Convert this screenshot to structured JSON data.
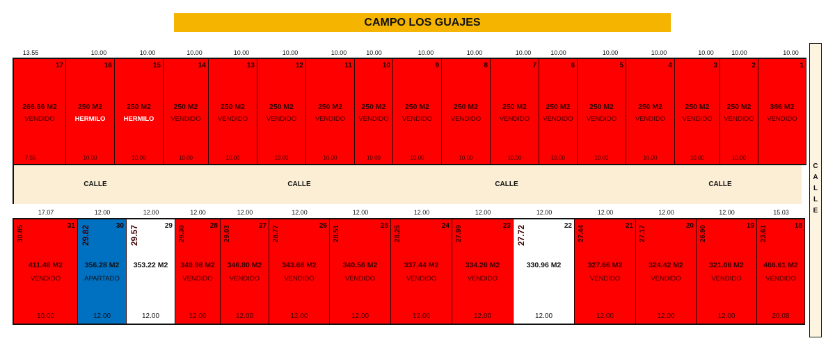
{
  "title": "CAMPO LOS GUAJES",
  "colors": {
    "sold": "#ff0000",
    "reserved": "#0070c0",
    "available": "#ffffff",
    "street": "#fbeed4",
    "title_bar": "#f5b400"
  },
  "top_dimensions": [
    "13.55",
    "10.00",
    "10.00",
    "10.00",
    "10.00",
    "10.00",
    "10.00",
    "10.00",
    "10.00",
    "10.00",
    "10.00",
    "10.00",
    "10.00",
    "10.00",
    "10.00",
    "10.00",
    "10.00"
  ],
  "top_lots": [
    {
      "number": "17",
      "area": "266.66 M2",
      "status": "VENDIDO",
      "base": "7.55",
      "color": "red"
    },
    {
      "number": "16",
      "area": "250 M2",
      "status": "HERMILO",
      "base": "10.00",
      "color": "red"
    },
    {
      "number": "15",
      "area": "250 M2",
      "status": "HERMILO",
      "base": "10.00",
      "color": "red"
    },
    {
      "number": "14",
      "area": "250 M2",
      "status": "VENDIDO",
      "base": "10.00",
      "color": "red"
    },
    {
      "number": "13",
      "area": "250 M2",
      "status": "VENDIDO",
      "base": "10.00",
      "color": "red"
    },
    {
      "number": "12",
      "area": "250 M2",
      "status": "VENDIDO",
      "base": "10.00",
      "color": "red"
    },
    {
      "number": "11",
      "area": "250 M2",
      "status": "VENDIDO",
      "base": "10.00",
      "color": "red"
    },
    {
      "number": "10",
      "area": "250 M2",
      "status": "VENDIDO",
      "base": "10.00",
      "color": "red"
    },
    {
      "number": "9",
      "area": "250 M2",
      "status": "VENDIDO",
      "base": "10.00",
      "color": "red"
    },
    {
      "number": "8",
      "area": "250 M2",
      "status": "VENDIDO",
      "base": "10.00",
      "color": "red"
    },
    {
      "number": "7",
      "area": "250 M2",
      "status": "VENDIDO",
      "base": "10.00",
      "color": "red"
    },
    {
      "number": "6",
      "area": "250 M2",
      "status": "VENDIDO",
      "base": "10.00",
      "color": "red"
    },
    {
      "number": "5",
      "area": "250 M2",
      "status": "VENDIDO",
      "base": "10.00",
      "color": "red"
    },
    {
      "number": "4",
      "area": "250 M2",
      "status": "VENDIDO",
      "base": "10.00",
      "color": "red"
    },
    {
      "number": "3",
      "area": "250 M2",
      "status": "VENDIDO",
      "base": "10.00",
      "color": "red"
    },
    {
      "number": "2",
      "area": "250 M2",
      "status": "VENDIDO",
      "base": "10.00",
      "color": "red"
    },
    {
      "number": "1",
      "area": "386 M2",
      "status": "VENDIDO",
      "base": "",
      "color": "red"
    }
  ],
  "street": {
    "label": "CALLE",
    "side_label": "CALLE"
  },
  "street_labels": [
    "CALLE",
    "CALLE",
    "CALLE",
    "CALLE"
  ],
  "middle_dimensions": [
    "17.07",
    "12.00",
    "12.00",
    "12.00",
    "12.00",
    "12.00",
    "12.00",
    "12.00",
    "12.00",
    "12.00",
    "12.00",
    "12.00",
    "12.00",
    "15.03"
  ],
  "bottom_lots": [
    {
      "number": "31",
      "depth": "30.85",
      "area": "411.46 M2",
      "status": "VENDIDO",
      "base": "10.00",
      "color": "red"
    },
    {
      "number": "30",
      "depth": "29.82",
      "area": "356.28 M2",
      "status": "APARTADO",
      "base": "12.00",
      "color": "blue"
    },
    {
      "number": "29",
      "depth": "29.57",
      "area": "353.22 M2",
      "status": "",
      "base": "12.00",
      "color": "white"
    },
    {
      "number": "28",
      "depth": "29.30",
      "area": "349.98 M2",
      "status": "VENDIDO",
      "base": "12.00",
      "color": "red"
    },
    {
      "number": "27",
      "depth": "29.03",
      "area": "346.80 M2",
      "status": "VENDIDO",
      "base": "12.00",
      "color": "red"
    },
    {
      "number": "26",
      "depth": "28.77",
      "area": "343.68 M2",
      "status": "VENDIDO",
      "base": "12.00",
      "color": "red"
    },
    {
      "number": "25",
      "depth": "28.51",
      "area": "340.56 M2",
      "status": "VENDIDO",
      "base": "12.00",
      "color": "red"
    },
    {
      "number": "24",
      "depth": "28.25",
      "area": "337.44 M2",
      "status": "VENDIDO",
      "base": "12.00",
      "color": "red"
    },
    {
      "number": "23",
      "depth": "27.99",
      "area": "334.26 M2",
      "status": "VENDIDO",
      "base": "12.00",
      "color": "red"
    },
    {
      "number": "22",
      "depth": "27.72",
      "area": "330.96 M2",
      "status": "",
      "base": "12.00",
      "color": "white"
    },
    {
      "number": "21",
      "depth": "27.44",
      "area": "327.66 M2",
      "status": "VENDIDO",
      "base": "12.00",
      "color": "red"
    },
    {
      "number": "20",
      "depth": "27.17",
      "area": "324.42 M2",
      "status": "VENDIDO",
      "base": "12.00",
      "color": "red"
    },
    {
      "number": "19",
      "depth": "26.90",
      "area": "321.06 M2",
      "status": "VENDIDO",
      "base": "12.00",
      "color": "red"
    },
    {
      "number": "18",
      "depth": "23.61",
      "area": "466.61 M2",
      "status": "VENDIDO",
      "base": "20.08",
      "color": "red"
    }
  ]
}
